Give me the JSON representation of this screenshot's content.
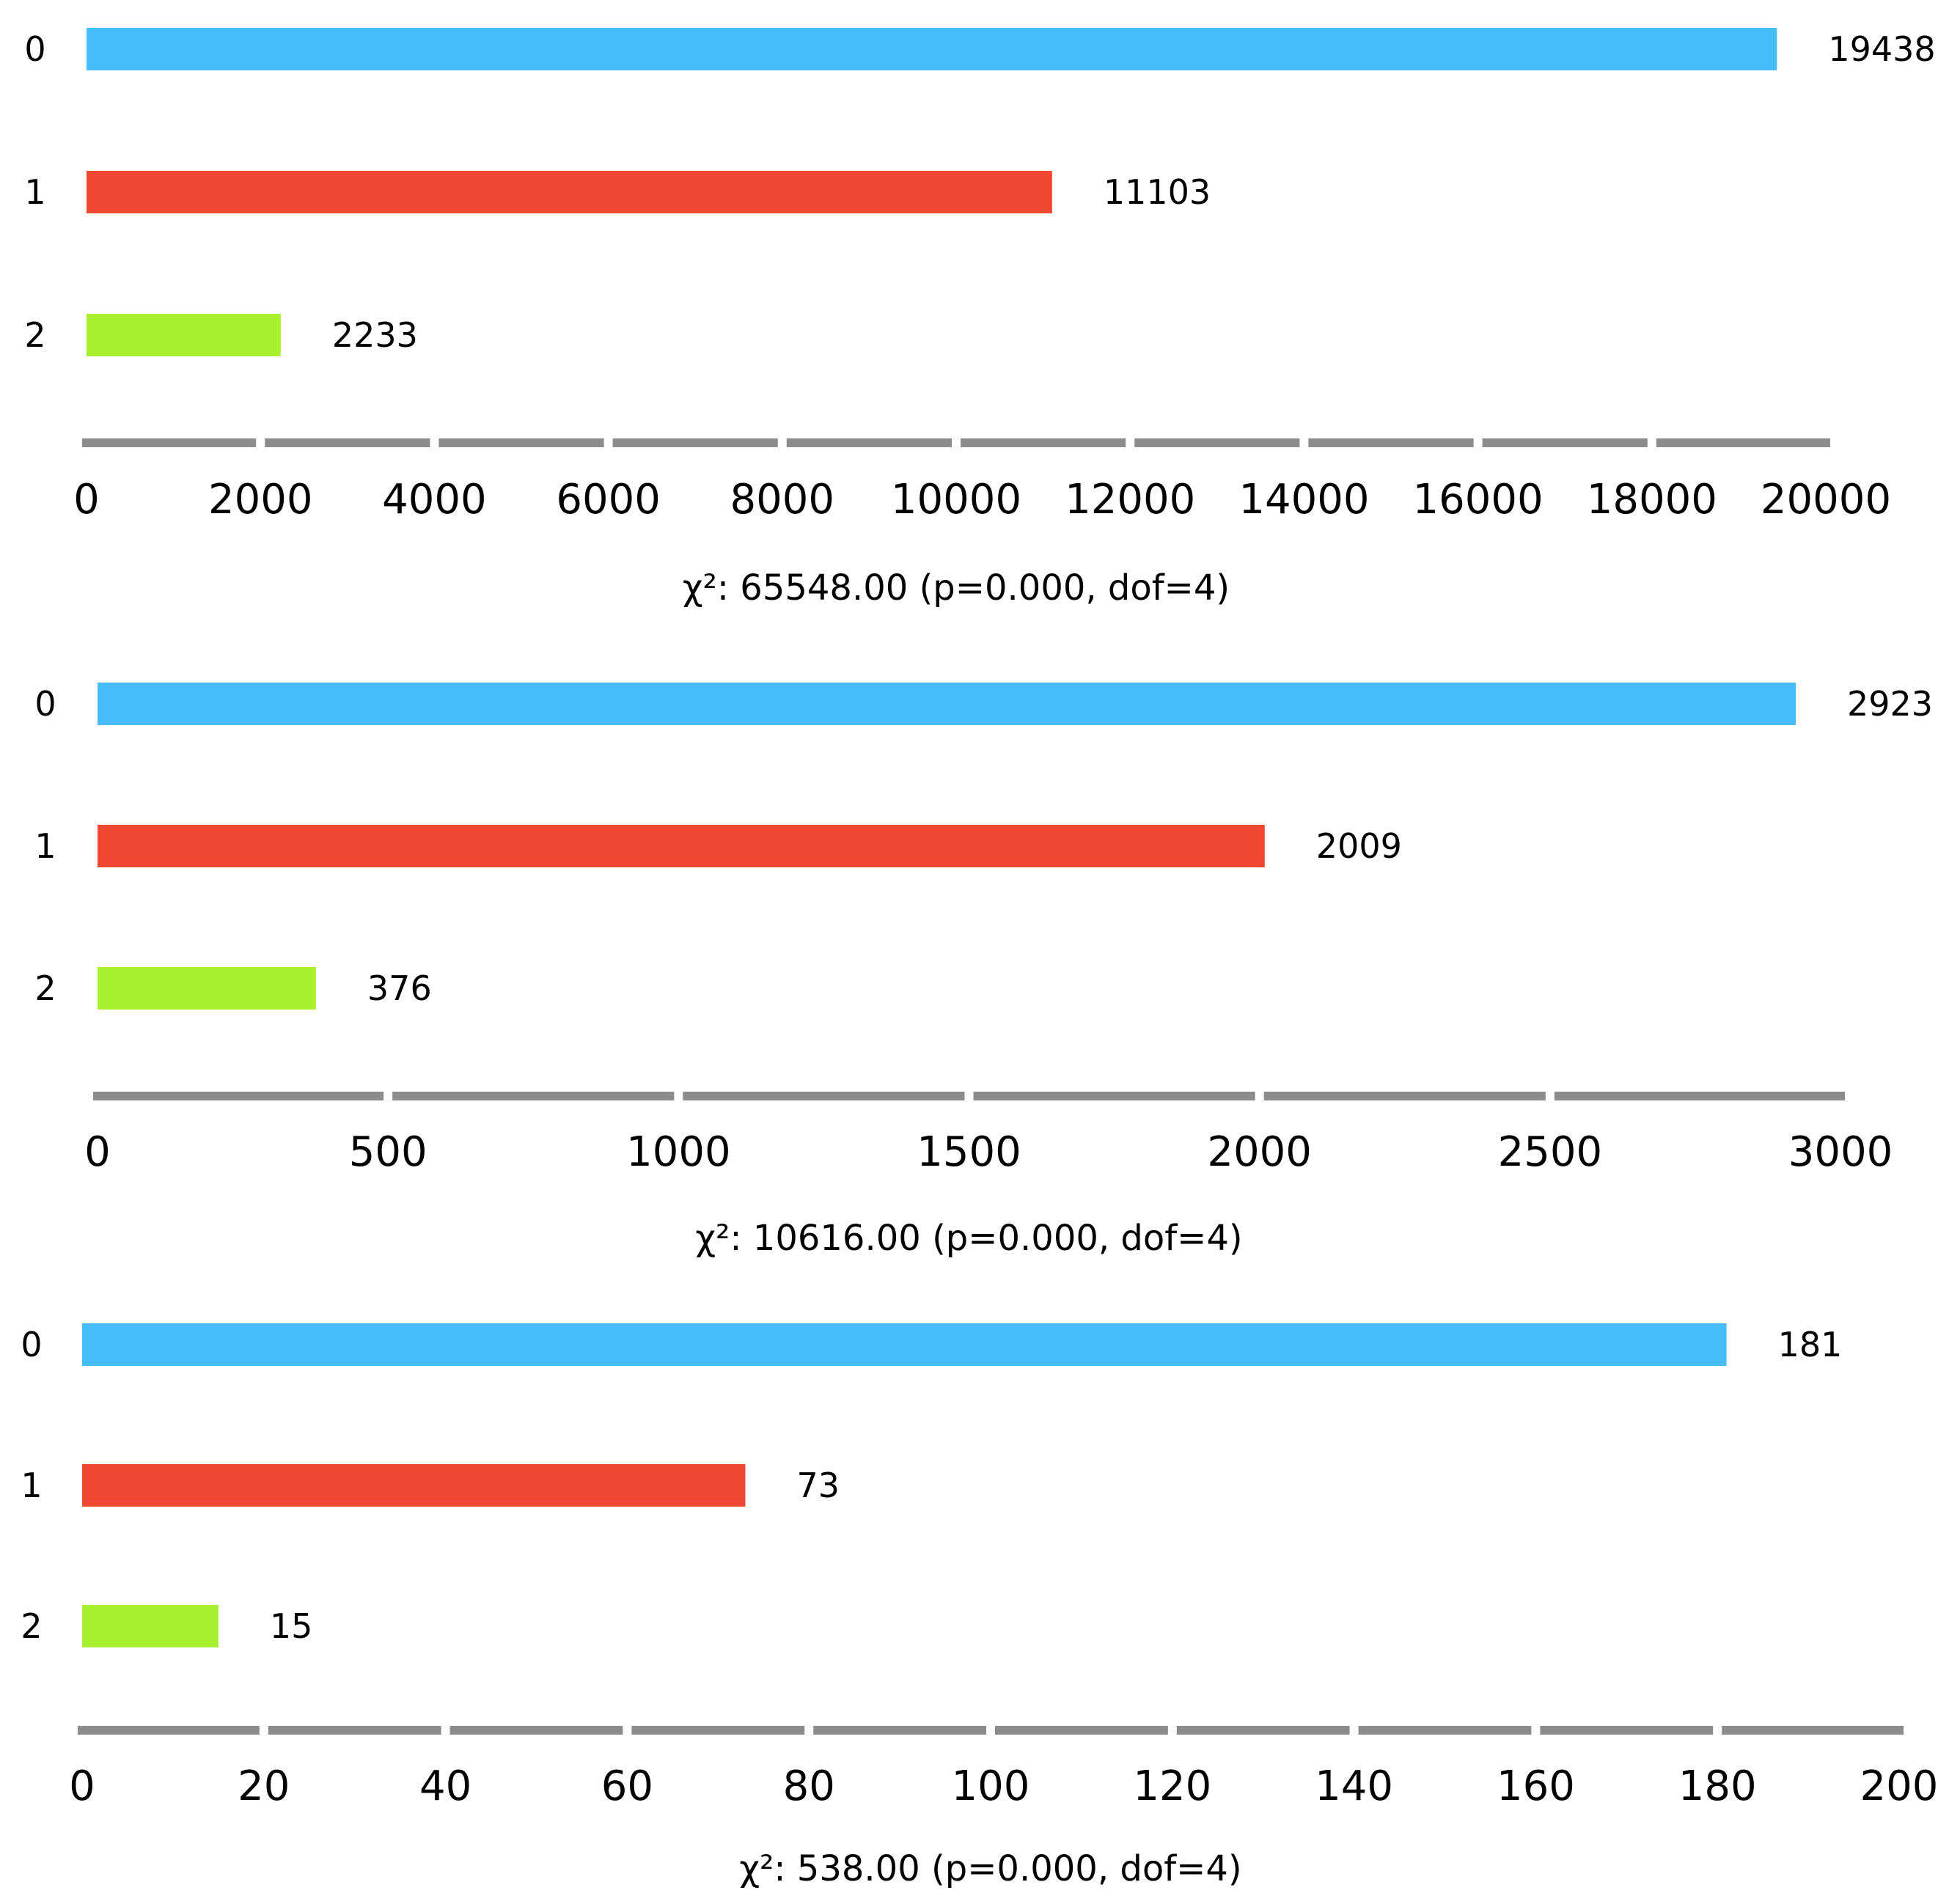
{
  "chart_data": [
    {
      "type": "bar",
      "orientation": "horizontal",
      "categories": [
        "0",
        "1",
        "2"
      ],
      "values": [
        19438,
        11103,
        2233
      ],
      "value_labels": [
        "19438",
        "11103",
        "2233"
      ],
      "xlim": [
        0,
        20000
      ],
      "x_ticks": [
        0,
        2000,
        4000,
        6000,
        8000,
        10000,
        12000,
        14000,
        16000,
        18000,
        20000
      ],
      "x_tick_labels": [
        "0",
        "2000",
        "4000",
        "6000",
        "8000",
        "10000",
        "12000",
        "14000",
        "16000",
        "18000",
        "20000"
      ],
      "statistic": "χ²: 65548.00 (p=0.000, dof=4)",
      "colors": [
        "#46bdf8",
        "#ef4731",
        "#a9f02e"
      ],
      "grid": false
    },
    {
      "type": "bar",
      "orientation": "horizontal",
      "categories": [
        "0",
        "1",
        "2"
      ],
      "values": [
        2923,
        2009,
        376
      ],
      "value_labels": [
        "2923",
        "2009",
        "376"
      ],
      "xlim": [
        0,
        3000
      ],
      "x_ticks": [
        0,
        500,
        1000,
        1500,
        2000,
        2500,
        3000
      ],
      "x_tick_labels": [
        "0",
        "500",
        "1000",
        "1500",
        "2000",
        "2500",
        "3000"
      ],
      "statistic": "χ²: 10616.00 (p=0.000, dof=4)",
      "colors": [
        "#46bdf8",
        "#ef4731",
        "#a9f02e"
      ],
      "grid": false
    },
    {
      "type": "bar",
      "orientation": "horizontal",
      "categories": [
        "0",
        "1",
        "2"
      ],
      "values": [
        181,
        73,
        15
      ],
      "value_labels": [
        "181",
        "73",
        "15"
      ],
      "xlim": [
        0,
        200
      ],
      "x_ticks": [
        0,
        20,
        40,
        60,
        80,
        100,
        120,
        140,
        160,
        180,
        200
      ],
      "x_tick_labels": [
        "0",
        "20",
        "40",
        "60",
        "80",
        "100",
        "120",
        "140",
        "160",
        "180",
        "200"
      ],
      "statistic": "χ²: 538.00 (p=0.000, dof=4)",
      "colors": [
        "#46bdf8",
        "#ef4731",
        "#a9f02e"
      ],
      "grid": false
    }
  ]
}
